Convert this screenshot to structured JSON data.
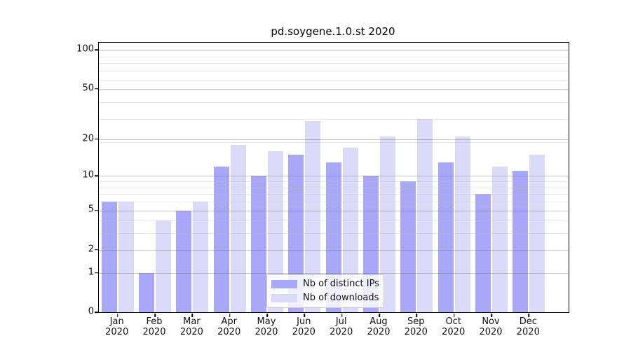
{
  "title": "pd.soygene.1.0.st 2020",
  "chart_data": {
    "type": "bar",
    "title": "pd.soygene.1.0.st 2020",
    "categories": [
      "Jan 2020",
      "Feb 2020",
      "Mar 2020",
      "Apr 2020",
      "May 2020",
      "Jun 2020",
      "Jul 2020",
      "Aug 2020",
      "Sep 2020",
      "Oct 2020",
      "Nov 2020",
      "Dec 2020"
    ],
    "x_tick_line1": [
      "Jan",
      "Feb",
      "Mar",
      "Apr",
      "May",
      "Jun",
      "Jul",
      "Aug",
      "Sep",
      "Oct",
      "Nov",
      "Dec"
    ],
    "x_tick_line2": "2020",
    "series": [
      {
        "name": "Nb of distinct IPs",
        "color": "#a8a7f8",
        "values": [
          6,
          1,
          5,
          12,
          10,
          15,
          13,
          10,
          9,
          13,
          7,
          11
        ]
      },
      {
        "name": "Nb of downloads",
        "color": "#dbdaf9",
        "values": [
          6,
          4,
          6,
          18,
          16,
          28,
          17,
          21,
          29,
          21,
          12,
          15
        ]
      }
    ],
    "xlabel": "",
    "ylabel": "",
    "y_scale": "log1p",
    "ylim": [
      0,
      113
    ],
    "y_ticks": [
      100,
      50,
      20,
      10,
      5,
      2,
      1,
      0
    ],
    "minor_grid_values": [
      3,
      4,
      6,
      7,
      8,
      9,
      19,
      29,
      39,
      49,
      59,
      69,
      79,
      89,
      99
    ],
    "major_grid_values": [
      1,
      2,
      5,
      10,
      20,
      50,
      100
    ],
    "grid": "horizontal",
    "legend_position": "lower center",
    "legend_labels": [
      "Nb of distinct IPs",
      "Nb of downloads"
    ]
  }
}
